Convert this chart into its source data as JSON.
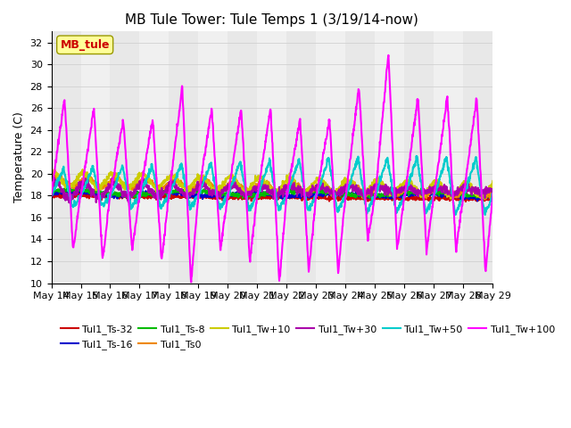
{
  "title": "MB Tule Tower: Tule Temps 1 (3/19/14-now)",
  "ylabel": "Temperature (C)",
  "ylim": [
    10,
    33
  ],
  "yticks": [
    10,
    12,
    14,
    16,
    18,
    20,
    22,
    24,
    26,
    28,
    30,
    32
  ],
  "num_days": 15,
  "day_start": 14,
  "annotation_label": "MB_tule",
  "series": [
    {
      "label": "Tul1_Ts-32",
      "color": "#cc0000",
      "lw": 1.5
    },
    {
      "label": "Tul1_Ts-16",
      "color": "#0000cc",
      "lw": 1.5
    },
    {
      "label": "Tul1_Ts-8",
      "color": "#00bb00",
      "lw": 1.5
    },
    {
      "label": "Tul1_Ts0",
      "color": "#ee8800",
      "lw": 1.5
    },
    {
      "label": "Tul1_Tw+10",
      "color": "#cccc00",
      "lw": 1.5
    },
    {
      "label": "Tul1_Tw+30",
      "color": "#aa00aa",
      "lw": 1.5
    },
    {
      "label": "Tul1_Tw+50",
      "color": "#00cccc",
      "lw": 1.5
    },
    {
      "label": "Tul1_Tw+100",
      "color": "#ff00ff",
      "lw": 1.5
    }
  ],
  "bg_colors": [
    "#e8e8e8",
    "#f0f0f0"
  ],
  "grid_color": "#cccccc",
  "figsize": [
    6.4,
    4.8
  ],
  "dpi": 100
}
